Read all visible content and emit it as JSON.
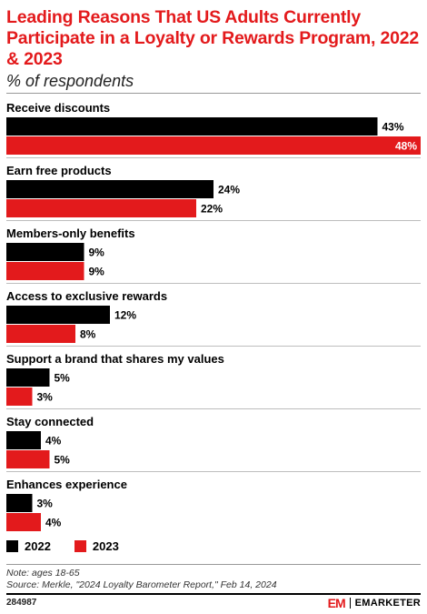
{
  "title": "Leading Reasons That US Adults Currently Participate in a Loyalty or Rewards Program, 2022 & 2023",
  "subtitle": "% of respondents",
  "note": "Note: ages 18-65",
  "source": "Source: Merkle, \"2024 Loyalty Barometer Report,\" Feb 14, 2024",
  "chart_id": "284987",
  "brand": {
    "mark": "EM",
    "name": "EMARKETER"
  },
  "colors": {
    "2022": "#000000",
    "2023": "#e31a1c",
    "title": "#e31a1c"
  },
  "chart_data": {
    "type": "bar",
    "orientation": "horizontal",
    "categories": [
      "Receive discounts",
      "Earn free products",
      "Members-only benefits",
      "Access to exclusive rewards",
      "Support a brand that shares my values",
      "Stay connected",
      "Enhances experience"
    ],
    "series": [
      {
        "name": "2022",
        "color": "#000000",
        "values": [
          43,
          24,
          9,
          12,
          5,
          4,
          3
        ]
      },
      {
        "name": "2023",
        "color": "#e31a1c",
        "values": [
          48,
          22,
          9,
          8,
          3,
          5,
          4
        ]
      }
    ],
    "value_suffix": "%",
    "xlim": [
      0,
      48
    ],
    "legend": "bottom-left",
    "grid": false
  }
}
